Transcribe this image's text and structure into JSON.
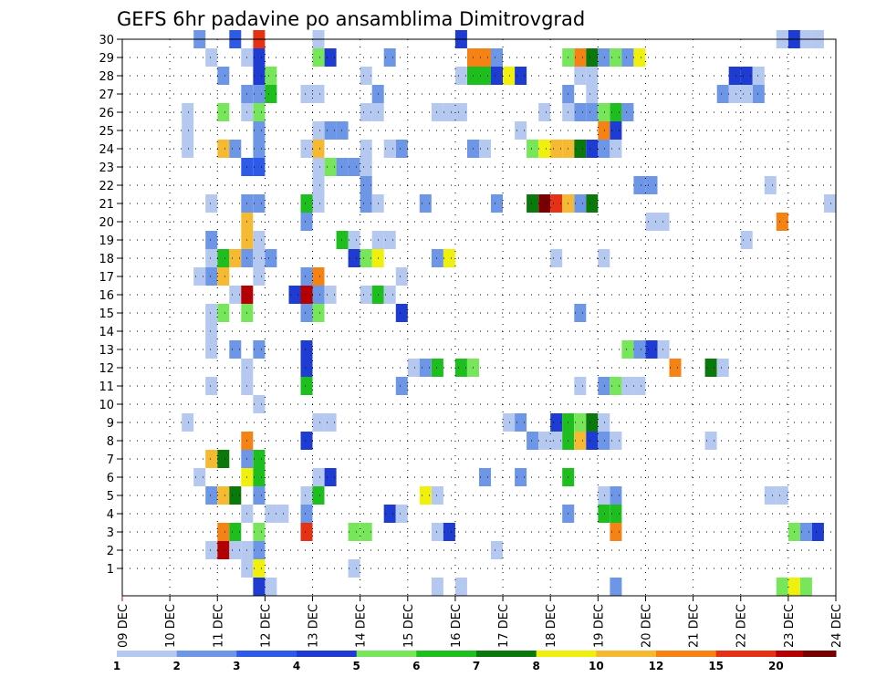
{
  "chart_data": {
    "type": "heatmap",
    "title": "GEFS 6hr padavine po ansamblima Dimitrovgrad",
    "x_tick_labels": [
      "09 DEC",
      "10 DEC",
      "11 DEC",
      "12 DEC",
      "13 DEC",
      "14 DEC",
      "15 DEC",
      "16 DEC",
      "17 DEC",
      "18 DEC",
      "19 DEC",
      "20 DEC",
      "21 DEC",
      "22 DEC",
      "23 DEC",
      "24 DEC"
    ],
    "y_tick_labels": [
      "1",
      "2",
      "3",
      "4",
      "5",
      "6",
      "7",
      "8",
      "9",
      "10",
      "11",
      "12",
      "13",
      "14",
      "15",
      "16",
      "17",
      "18",
      "19",
      "20",
      "21",
      "22",
      "23",
      "24",
      "25",
      "26",
      "27",
      "28",
      "29",
      "30"
    ],
    "xlim_days": [
      0,
      15
    ],
    "ylim_members": [
      0,
      30
    ],
    "step_days": 0.25,
    "grid": true,
    "colorbar": {
      "tick_labels": [
        "1",
        "2",
        "3",
        "4",
        "5",
        "6",
        "7",
        "8",
        "10",
        "12",
        "15",
        "20"
      ],
      "colors": [
        "#b4c8f0",
        "#6e96e6",
        "#2d5ae6",
        "#1e3cd2",
        "#78e65a",
        "#1ebe1e",
        "#0a780a",
        "#f0f00f",
        "#f5b932",
        "#f58214",
        "#e63214",
        "#b40000",
        "#780000"
      ]
    },
    "levels": [
      "#b4c8f0",
      "#6e96e6",
      "#2d5ae6",
      "#1e3cd2",
      "#78e65a",
      "#1ebe1e",
      "#0a780a",
      "#f0f00f",
      "#f5b932",
      "#f58214",
      "#e63214",
      "#b40000",
      "#780000"
    ],
    "cells": [
      [
        1.5,
        30,
        2
      ],
      [
        2.25,
        30,
        3
      ],
      [
        2.75,
        30,
        11
      ],
      [
        4.0,
        30,
        1
      ],
      [
        7.0,
        30,
        4
      ],
      [
        13.75,
        30,
        1
      ],
      [
        14.0,
        30,
        4
      ],
      [
        14.25,
        30,
        1
      ],
      [
        14.5,
        30,
        1
      ],
      [
        1.75,
        29,
        1
      ],
      [
        2.5,
        29,
        1
      ],
      [
        2.75,
        29,
        4
      ],
      [
        4.0,
        29,
        5
      ],
      [
        4.25,
        29,
        4
      ],
      [
        5.5,
        29,
        2
      ],
      [
        7.25,
        29,
        10
      ],
      [
        7.5,
        29,
        10
      ],
      [
        7.75,
        29,
        2
      ],
      [
        9.25,
        29,
        5
      ],
      [
        9.5,
        29,
        10
      ],
      [
        9.75,
        29,
        7
      ],
      [
        10.0,
        29,
        2
      ],
      [
        10.25,
        29,
        5
      ],
      [
        10.5,
        29,
        2
      ],
      [
        10.75,
        29,
        8
      ],
      [
        2.0,
        28,
        2
      ],
      [
        2.75,
        28,
        4
      ],
      [
        3.0,
        28,
        5
      ],
      [
        5.0,
        28,
        1
      ],
      [
        7.0,
        28,
        1
      ],
      [
        7.25,
        28,
        6
      ],
      [
        7.5,
        28,
        6
      ],
      [
        7.75,
        28,
        4
      ],
      [
        8.0,
        28,
        8
      ],
      [
        8.25,
        28,
        4
      ],
      [
        9.5,
        28,
        1
      ],
      [
        9.75,
        28,
        1
      ],
      [
        12.75,
        28,
        4
      ],
      [
        13.0,
        28,
        4
      ],
      [
        13.25,
        28,
        1
      ],
      [
        2.5,
        27,
        2
      ],
      [
        2.75,
        27,
        2
      ],
      [
        3.0,
        27,
        6
      ],
      [
        3.75,
        27,
        1
      ],
      [
        4.0,
        27,
        1
      ],
      [
        5.25,
        27,
        2
      ],
      [
        9.25,
        27,
        2
      ],
      [
        9.75,
        27,
        1
      ],
      [
        12.5,
        27,
        2
      ],
      [
        12.75,
        27,
        1
      ],
      [
        13.0,
        27,
        1
      ],
      [
        13.25,
        27,
        2
      ],
      [
        1.25,
        26,
        1
      ],
      [
        2.0,
        26,
        5
      ],
      [
        2.5,
        26,
        1
      ],
      [
        2.75,
        26,
        5
      ],
      [
        5.0,
        26,
        1
      ],
      [
        5.25,
        26,
        1
      ],
      [
        6.5,
        26,
        1
      ],
      [
        6.75,
        26,
        1
      ],
      [
        7.0,
        26,
        1
      ],
      [
        8.75,
        26,
        1
      ],
      [
        9.25,
        26,
        1
      ],
      [
        9.5,
        26,
        2
      ],
      [
        9.75,
        26,
        2
      ],
      [
        10.0,
        26,
        5
      ],
      [
        10.25,
        26,
        6
      ],
      [
        10.5,
        26,
        2
      ],
      [
        1.25,
        25,
        1
      ],
      [
        2.75,
        25,
        2
      ],
      [
        4.0,
        25,
        1
      ],
      [
        4.25,
        25,
        2
      ],
      [
        4.5,
        25,
        2
      ],
      [
        8.25,
        25,
        1
      ],
      [
        10.0,
        25,
        10
      ],
      [
        10.25,
        25,
        4
      ],
      [
        1.25,
        24,
        1
      ],
      [
        2.0,
        24,
        9
      ],
      [
        2.25,
        24,
        2
      ],
      [
        2.75,
        24,
        2
      ],
      [
        3.75,
        24,
        1
      ],
      [
        4.0,
        24,
        9
      ],
      [
        5.0,
        24,
        1
      ],
      [
        5.5,
        24,
        1
      ],
      [
        5.75,
        24,
        2
      ],
      [
        7.25,
        24,
        2
      ],
      [
        7.5,
        24,
        1
      ],
      [
        8.5,
        24,
        5
      ],
      [
        8.75,
        24,
        8
      ],
      [
        9.0,
        24,
        9
      ],
      [
        9.25,
        24,
        9
      ],
      [
        9.5,
        24,
        7
      ],
      [
        9.75,
        24,
        4
      ],
      [
        10.0,
        24,
        2
      ],
      [
        10.25,
        24,
        1
      ],
      [
        2.5,
        23,
        3
      ],
      [
        2.75,
        23,
        3
      ],
      [
        4.0,
        23,
        1
      ],
      [
        4.25,
        23,
        5
      ],
      [
        4.5,
        23,
        2
      ],
      [
        4.75,
        23,
        2
      ],
      [
        5.0,
        23,
        1
      ],
      [
        4.0,
        22,
        1
      ],
      [
        5.0,
        22,
        2
      ],
      [
        10.75,
        22,
        2
      ],
      [
        11.0,
        22,
        2
      ],
      [
        13.5,
        22,
        1
      ],
      [
        1.75,
        21,
        1
      ],
      [
        2.5,
        21,
        2
      ],
      [
        2.75,
        21,
        2
      ],
      [
        3.75,
        21,
        6
      ],
      [
        4.0,
        21,
        1
      ],
      [
        5.0,
        21,
        2
      ],
      [
        5.25,
        21,
        1
      ],
      [
        6.25,
        21,
        2
      ],
      [
        7.75,
        21,
        2
      ],
      [
        8.5,
        21,
        7
      ],
      [
        8.75,
        21,
        13
      ],
      [
        9.0,
        21,
        11
      ],
      [
        9.25,
        21,
        9
      ],
      [
        9.5,
        21,
        2
      ],
      [
        9.75,
        21,
        7
      ],
      [
        14.75,
        21,
        1
      ],
      [
        2.5,
        20,
        9
      ],
      [
        3.75,
        20,
        2
      ],
      [
        11.0,
        20,
        1
      ],
      [
        11.25,
        20,
        1
      ],
      [
        13.75,
        20,
        10
      ],
      [
        2.5,
        19,
        9
      ],
      [
        2.75,
        19,
        1
      ],
      [
        1.75,
        19,
        2
      ],
      [
        4.5,
        19,
        6
      ],
      [
        4.75,
        19,
        1
      ],
      [
        5.25,
        19,
        1
      ],
      [
        5.5,
        19,
        1
      ],
      [
        13.0,
        19,
        1
      ],
      [
        1.75,
        18,
        1
      ],
      [
        2.0,
        18,
        6
      ],
      [
        2.25,
        18,
        9
      ],
      [
        2.5,
        18,
        2
      ],
      [
        2.75,
        18,
        1
      ],
      [
        3.0,
        18,
        2
      ],
      [
        4.75,
        18,
        4
      ],
      [
        5.0,
        18,
        5
      ],
      [
        5.25,
        18,
        8
      ],
      [
        6.5,
        18,
        2
      ],
      [
        6.75,
        18,
        8
      ],
      [
        9.0,
        18,
        1
      ],
      [
        10.0,
        18,
        1
      ],
      [
        1.5,
        17,
        1
      ],
      [
        1.75,
        17,
        2
      ],
      [
        2.0,
        17,
        9
      ],
      [
        2.75,
        17,
        1
      ],
      [
        3.75,
        17,
        2
      ],
      [
        4.0,
        17,
        10
      ],
      [
        5.75,
        17,
        1
      ],
      [
        2.25,
        16,
        1
      ],
      [
        2.5,
        16,
        12
      ],
      [
        3.5,
        16,
        4
      ],
      [
        3.75,
        16,
        12
      ],
      [
        4.0,
        16,
        2
      ],
      [
        4.25,
        16,
        1
      ],
      [
        5.0,
        16,
        1
      ],
      [
        5.25,
        16,
        6
      ],
      [
        5.5,
        16,
        1
      ],
      [
        1.75,
        15,
        1
      ],
      [
        2.0,
        15,
        5
      ],
      [
        2.5,
        15,
        5
      ],
      [
        3.75,
        15,
        2
      ],
      [
        4.0,
        15,
        5
      ],
      [
        5.75,
        15,
        4
      ],
      [
        9.5,
        15,
        2
      ],
      [
        1.75,
        14,
        1
      ],
      [
        1.75,
        13,
        1
      ],
      [
        2.25,
        13,
        2
      ],
      [
        2.75,
        13,
        2
      ],
      [
        3.75,
        13,
        4
      ],
      [
        10.5,
        13,
        5
      ],
      [
        10.75,
        13,
        2
      ],
      [
        11.0,
        13,
        4
      ],
      [
        11.25,
        13,
        1
      ],
      [
        3.75,
        12,
        4
      ],
      [
        2.5,
        12,
        1
      ],
      [
        6.0,
        12,
        1
      ],
      [
        6.25,
        12,
        2
      ],
      [
        6.5,
        12,
        6
      ],
      [
        7.0,
        12,
        6
      ],
      [
        7.25,
        12,
        5
      ],
      [
        11.5,
        12,
        10
      ],
      [
        12.25,
        12,
        7
      ],
      [
        12.5,
        12,
        1
      ],
      [
        1.75,
        11,
        1
      ],
      [
        2.5,
        11,
        1
      ],
      [
        3.75,
        11,
        6
      ],
      [
        5.75,
        11,
        2
      ],
      [
        9.5,
        11,
        1
      ],
      [
        10.0,
        11,
        2
      ],
      [
        10.25,
        11,
        5
      ],
      [
        10.5,
        11,
        1
      ],
      [
        10.75,
        11,
        1
      ],
      [
        2.75,
        10,
        1
      ],
      [
        1.25,
        9,
        1
      ],
      [
        4.0,
        9,
        1
      ],
      [
        4.25,
        9,
        1
      ],
      [
        8.0,
        9,
        1
      ],
      [
        8.25,
        9,
        2
      ],
      [
        9.0,
        9,
        4
      ],
      [
        9.25,
        9,
        6
      ],
      [
        9.5,
        9,
        5
      ],
      [
        9.75,
        9,
        7
      ],
      [
        10.0,
        9,
        1
      ],
      [
        2.5,
        8,
        10
      ],
      [
        3.75,
        8,
        4
      ],
      [
        8.5,
        8,
        2
      ],
      [
        8.75,
        8,
        1
      ],
      [
        9.0,
        8,
        1
      ],
      [
        9.25,
        8,
        6
      ],
      [
        9.5,
        8,
        9
      ],
      [
        9.75,
        8,
        4
      ],
      [
        10.0,
        8,
        2
      ],
      [
        10.25,
        8,
        1
      ],
      [
        12.25,
        8,
        1
      ],
      [
        1.75,
        7,
        9
      ],
      [
        2.0,
        7,
        7
      ],
      [
        2.5,
        7,
        2
      ],
      [
        2.75,
        7,
        6
      ],
      [
        1.5,
        6,
        1
      ],
      [
        2.5,
        6,
        8
      ],
      [
        2.75,
        6,
        6
      ],
      [
        4.0,
        6,
        1
      ],
      [
        4.25,
        6,
        4
      ],
      [
        7.5,
        6,
        2
      ],
      [
        8.25,
        6,
        2
      ],
      [
        9.25,
        6,
        6
      ],
      [
        1.75,
        5,
        2
      ],
      [
        2.0,
        5,
        9
      ],
      [
        2.25,
        5,
        7
      ],
      [
        2.75,
        5,
        2
      ],
      [
        3.75,
        5,
        1
      ],
      [
        4.0,
        5,
        6
      ],
      [
        6.25,
        5,
        8
      ],
      [
        6.5,
        5,
        1
      ],
      [
        10.0,
        5,
        1
      ],
      [
        10.25,
        5,
        2
      ],
      [
        13.5,
        5,
        1
      ],
      [
        13.75,
        5,
        1
      ],
      [
        2.5,
        4,
        1
      ],
      [
        3.0,
        4,
        1
      ],
      [
        3.25,
        4,
        1
      ],
      [
        3.75,
        4,
        2
      ],
      [
        5.5,
        4,
        4
      ],
      [
        5.75,
        4,
        1
      ],
      [
        9.25,
        4,
        2
      ],
      [
        10.0,
        4,
        6
      ],
      [
        10.25,
        4,
        6
      ],
      [
        2.0,
        3,
        10
      ],
      [
        2.25,
        3,
        6
      ],
      [
        2.75,
        3,
        5
      ],
      [
        3.75,
        3,
        11
      ],
      [
        4.75,
        3,
        5
      ],
      [
        5.0,
        3,
        5
      ],
      [
        6.5,
        3,
        1
      ],
      [
        6.75,
        3,
        4
      ],
      [
        10.25,
        3,
        10
      ],
      [
        14.0,
        3,
        5
      ],
      [
        14.25,
        3,
        2
      ],
      [
        14.5,
        3,
        4
      ],
      [
        1.75,
        2,
        1
      ],
      [
        2.0,
        2,
        12
      ],
      [
        2.25,
        2,
        1
      ],
      [
        2.5,
        2,
        1
      ],
      [
        2.75,
        2,
        2
      ],
      [
        7.75,
        2,
        1
      ],
      [
        2.5,
        1,
        1
      ],
      [
        2.75,
        1,
        8
      ],
      [
        4.75,
        1,
        1
      ],
      [
        2.75,
        0,
        4
      ],
      [
        3.0,
        0,
        1
      ],
      [
        6.5,
        0,
        1
      ],
      [
        7.0,
        0,
        1
      ],
      [
        10.25,
        0,
        2
      ],
      [
        13.75,
        0,
        5
      ],
      [
        14.0,
        0,
        8
      ],
      [
        14.25,
        0,
        5
      ]
    ]
  }
}
